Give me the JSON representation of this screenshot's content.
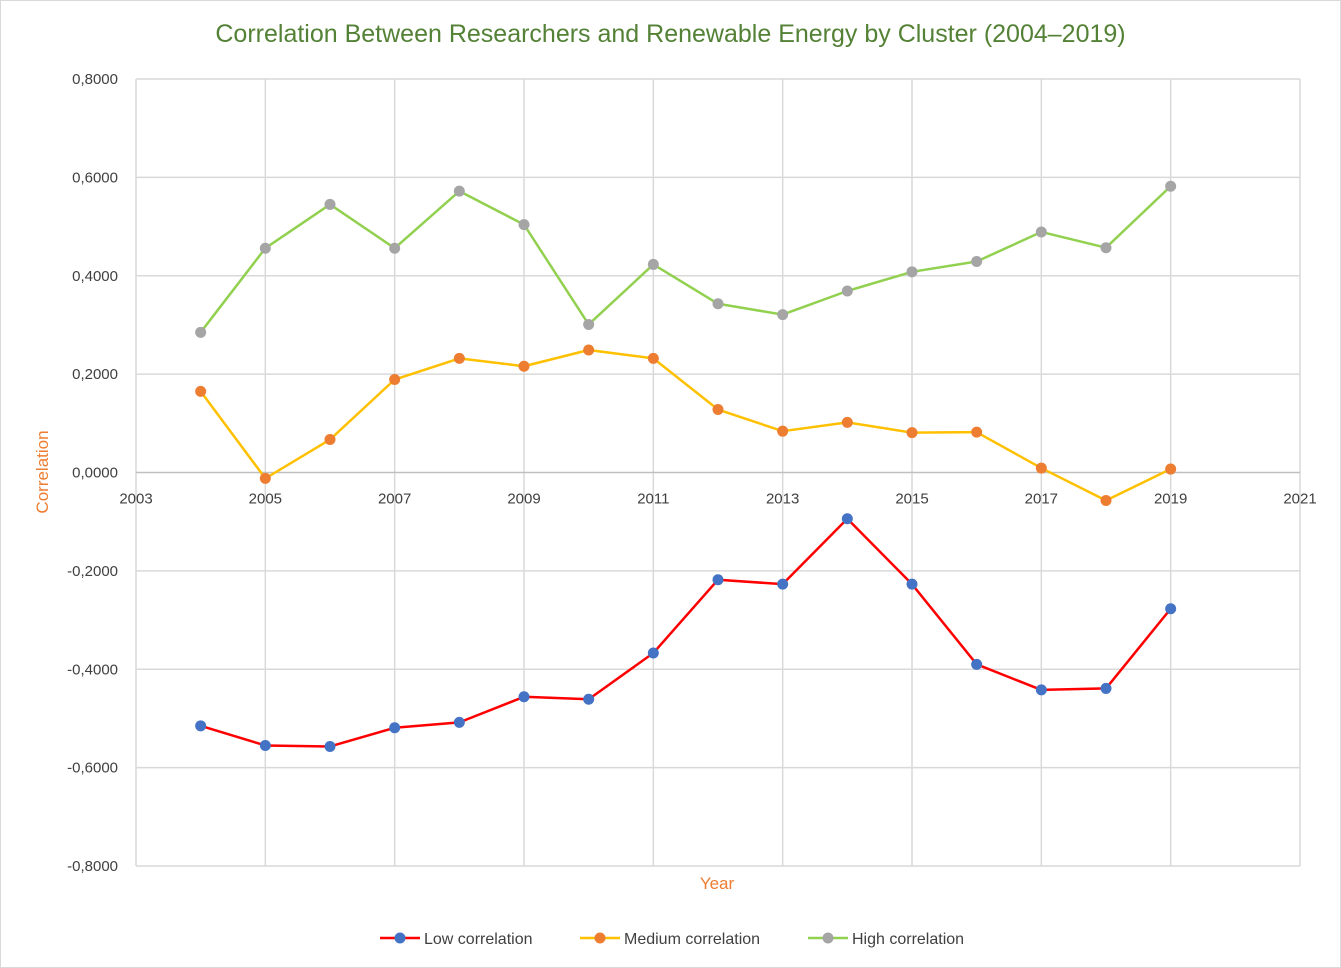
{
  "chart_data": {
    "type": "line",
    "title": "Correlation Between Researchers and Renewable Energy by Cluster (2004–2019)",
    "xlabel": "Year",
    "ylabel": "Correlation",
    "xlim": [
      2003,
      2021
    ],
    "ylim": [
      -0.8,
      0.8
    ],
    "x_ticks": [
      2003,
      2005,
      2007,
      2009,
      2011,
      2013,
      2015,
      2017,
      2019,
      2021
    ],
    "y_ticks": [
      -0.8,
      -0.6,
      -0.4,
      -0.2,
      0.0,
      0.2,
      0.4,
      0.6,
      0.8
    ],
    "y_tick_labels": [
      "-0,8000",
      "-0,6000",
      "-0,4000",
      "-0,2000",
      "0,0000",
      "0,2000",
      "0,4000",
      "0,6000",
      "0,8000"
    ],
    "grid": true,
    "legend_position": "bottom",
    "x": [
      2004,
      2005,
      2006,
      2007,
      2008,
      2009,
      2010,
      2011,
      2012,
      2013,
      2014,
      2015,
      2016,
      2017,
      2018,
      2019
    ],
    "series": [
      {
        "name": "Low correlation",
        "line_color": "#ff0000",
        "marker_color": "#4472c4",
        "values": [
          -0.515,
          -0.555,
          -0.557,
          -0.519,
          -0.508,
          -0.456,
          -0.461,
          -0.367,
          -0.218,
          -0.227,
          -0.094,
          -0.227,
          -0.39,
          -0.442,
          -0.439,
          -0.277
        ]
      },
      {
        "name": "Medium correlation",
        "line_color": "#ffc000",
        "marker_color": "#ed7d31",
        "values": [
          0.165,
          -0.012,
          0.067,
          0.189,
          0.232,
          0.216,
          0.249,
          0.232,
          0.128,
          0.084,
          0.102,
          0.081,
          0.082,
          0.009,
          -0.057,
          0.007
        ]
      },
      {
        "name": "High correlation",
        "line_color": "#92d050",
        "marker_color": "#a5a5a5",
        "values": [
          0.285,
          0.456,
          0.545,
          0.456,
          0.572,
          0.504,
          0.301,
          0.423,
          0.343,
          0.321,
          0.369,
          0.408,
          0.429,
          0.489,
          0.457,
          0.582
        ]
      }
    ]
  }
}
